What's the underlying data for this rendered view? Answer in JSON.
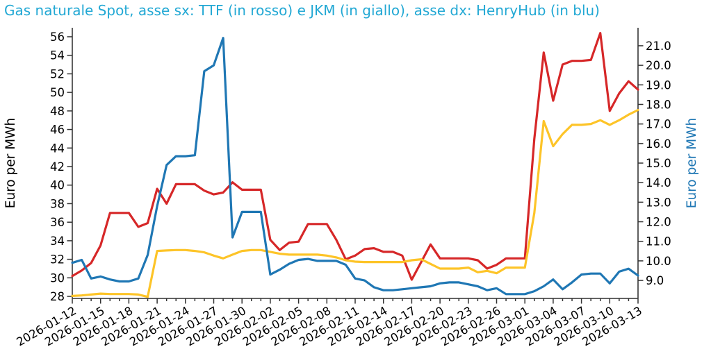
{
  "title": {
    "text": "Gas naturale Spot, asse sx: TTF (in rosso) e JKM (in giallo), asse dx: HenryHub (in blu)",
    "color": "#22a8d4"
  },
  "chart_data": {
    "type": "line",
    "title": "Gas naturale Spot, asse sx: TTF (in rosso) e JKM (in giallo), asse dx: HenryHub (in blu)",
    "grid": false,
    "legend": false,
    "background": "#ffffff",
    "x": [
      "2026-01-12",
      "2026-01-13",
      "2026-01-14",
      "2026-01-15",
      "2026-01-16",
      "2026-01-17",
      "2026-01-18",
      "2026-01-19",
      "2026-01-20",
      "2026-01-21",
      "2026-01-22",
      "2026-01-23",
      "2026-01-24",
      "2026-01-25",
      "2026-01-26",
      "2026-01-27",
      "2026-01-28",
      "2026-01-29",
      "2026-01-30",
      "2026-01-31",
      "2026-02-01",
      "2026-02-02",
      "2026-02-03",
      "2026-02-04",
      "2026-02-05",
      "2026-02-06",
      "2026-02-07",
      "2026-02-08",
      "2026-02-09",
      "2026-02-10",
      "2026-02-11",
      "2026-02-12",
      "2026-02-13",
      "2026-02-14",
      "2026-02-15",
      "2026-02-16",
      "2026-02-17",
      "2026-02-18",
      "2026-02-19",
      "2026-02-20",
      "2026-02-21",
      "2026-02-22",
      "2026-02-23",
      "2026-02-24",
      "2026-02-25",
      "2026-02-26",
      "2026-02-27",
      "2026-02-28",
      "2026-03-01",
      "2026-03-02",
      "2026-03-03",
      "2026-03-04",
      "2026-03-05",
      "2026-03-06",
      "2026-03-07",
      "2026-03-08",
      "2026-03-09",
      "2026-03-10",
      "2026-03-11",
      "2026-03-12",
      "2026-03-13"
    ],
    "x_axis": {
      "major_every": 3,
      "tick_labels": [
        "2026-01-12",
        "2026-01-15",
        "2026-01-18",
        "2026-01-21",
        "2026-01-24",
        "2026-01-27",
        "2026-01-30",
        "2026-02-02",
        "2026-02-05",
        "2026-02-08",
        "2026-02-11",
        "2026-02-14",
        "2026-02-17",
        "2026-02-20",
        "2026-02-23",
        "2026-02-26",
        "2026-03-01",
        "2026-03-04",
        "2026-03-07",
        "2026-03-10",
        "2026-03-13"
      ],
      "label_rotation_deg": 30
    },
    "left_axis": {
      "label": "Euro per MWh",
      "color": "#000000",
      "ticks": [
        28,
        30,
        32,
        34,
        36,
        38,
        40,
        42,
        44,
        46,
        48,
        50,
        52,
        54,
        56
      ],
      "min": 27.78,
      "max": 56.97
    },
    "right_axis": {
      "label": "Euro per MWh",
      "color": "#1f77b4",
      "ticks": [
        9.0,
        10.0,
        11.0,
        12.0,
        13.0,
        14.0,
        15.0,
        16.0,
        17.0,
        18.0,
        19.0,
        20.0,
        21.0
      ],
      "min": 8.08,
      "max": 21.92
    },
    "series": [
      {
        "name": "TTF",
        "color": "#d62728",
        "axis": "left",
        "values": [
          30.2,
          30.8,
          31.6,
          33.5,
          37.0,
          37.0,
          37.0,
          35.5,
          35.9,
          39.6,
          38.0,
          40.1,
          40.1,
          40.1,
          39.4,
          39.0,
          39.2,
          40.3,
          39.5,
          39.5,
          39.5,
          34.1,
          33.0,
          33.8,
          33.9,
          35.8,
          35.8,
          35.8,
          34.1,
          32.0,
          32.4,
          33.1,
          33.2,
          32.8,
          32.8,
          32.4,
          29.8,
          31.7,
          33.6,
          32.1,
          32.1,
          32.1,
          32.1,
          31.9,
          31.0,
          31.4,
          32.1,
          32.1,
          32.1,
          45.0,
          54.3,
          49.1,
          53.0,
          53.4,
          53.4,
          53.5,
          56.4,
          48.0,
          49.9,
          51.2,
          50.3
        ]
      },
      {
        "name": "JKM",
        "color": "#fdc428",
        "axis": "left",
        "values": [
          28.05,
          28.1,
          28.2,
          28.3,
          28.25,
          28.25,
          28.25,
          28.2,
          27.95,
          32.9,
          32.95,
          33.0,
          33.0,
          32.9,
          32.75,
          32.4,
          32.1,
          32.5,
          32.9,
          33.0,
          33.0,
          32.8,
          32.6,
          32.5,
          32.5,
          32.5,
          32.5,
          32.4,
          32.2,
          31.9,
          31.75,
          31.7,
          31.7,
          31.7,
          31.7,
          31.7,
          31.9,
          32.0,
          31.5,
          31.0,
          31.0,
          31.0,
          31.1,
          30.6,
          30.75,
          30.5,
          31.1,
          31.1,
          31.1,
          37.0,
          46.9,
          44.2,
          45.5,
          46.5,
          46.5,
          46.6,
          47.0,
          46.5,
          47.0,
          47.6,
          48.1
        ]
      },
      {
        "name": "HenryHub",
        "color": "#1f77b4",
        "axis": "right",
        "values": [
          9.9,
          10.05,
          9.1,
          9.2,
          9.05,
          8.95,
          8.95,
          9.1,
          10.3,
          12.8,
          14.9,
          15.35,
          15.35,
          15.4,
          19.7,
          20.0,
          21.4,
          11.2,
          12.5,
          12.5,
          12.5,
          9.3,
          9.55,
          9.85,
          10.05,
          10.1,
          10.0,
          10.0,
          10.0,
          9.8,
          9.1,
          9.0,
          8.65,
          8.5,
          8.5,
          8.55,
          8.6,
          8.65,
          8.7,
          8.85,
          8.9,
          8.9,
          8.8,
          8.7,
          8.5,
          8.6,
          8.3,
          8.3,
          8.3,
          8.45,
          8.7,
          9.05,
          8.55,
          8.9,
          9.3,
          9.35,
          9.35,
          8.85,
          9.45,
          9.6,
          9.25
        ]
      }
    ],
    "style": {
      "spine_color": "#4d4d4d",
      "tick_color": "#333333",
      "line_width": 3.2
    }
  }
}
